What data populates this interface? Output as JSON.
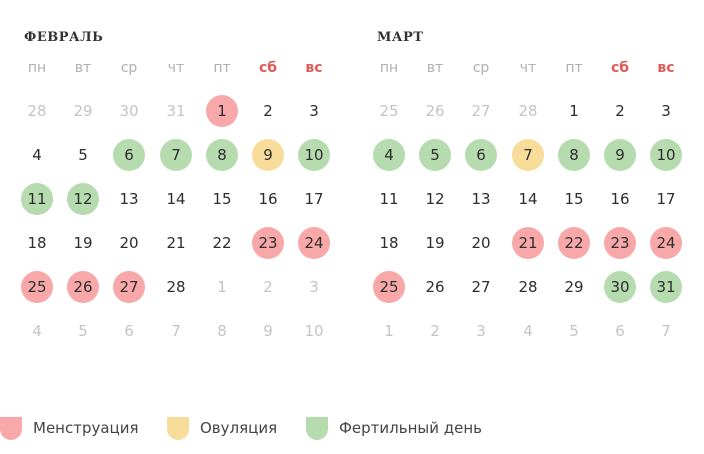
{
  "colors": {
    "menstruation": "#f8a8a8",
    "ovulation": "#f7dc9a",
    "fertile": "#b5dbaf",
    "weekend_header": "#e05a5a",
    "other_month_text": "#c4c4c4",
    "day_text": "#2d2d2d"
  },
  "weekdays": [
    "пн",
    "вт",
    "ср",
    "чт",
    "пт",
    "сб",
    "вс"
  ],
  "months": [
    {
      "title": "ФЕВРАЛЬ",
      "weeks": [
        [
          {
            "d": "28",
            "o": true
          },
          {
            "d": "29",
            "o": true
          },
          {
            "d": "30",
            "o": true
          },
          {
            "d": "31",
            "o": true
          },
          {
            "d": "1",
            "t": "menstruation"
          },
          {
            "d": "2"
          },
          {
            "d": "3"
          }
        ],
        [
          {
            "d": "4"
          },
          {
            "d": "5"
          },
          {
            "d": "6",
            "t": "fertile"
          },
          {
            "d": "7",
            "t": "fertile"
          },
          {
            "d": "8",
            "t": "fertile"
          },
          {
            "d": "9",
            "t": "ovulation"
          },
          {
            "d": "10",
            "t": "fertile"
          }
        ],
        [
          {
            "d": "11",
            "t": "fertile"
          },
          {
            "d": "12",
            "t": "fertile"
          },
          {
            "d": "13"
          },
          {
            "d": "14"
          },
          {
            "d": "15"
          },
          {
            "d": "16"
          },
          {
            "d": "17"
          }
        ],
        [
          {
            "d": "18"
          },
          {
            "d": "19"
          },
          {
            "d": "20"
          },
          {
            "d": "21"
          },
          {
            "d": "22"
          },
          {
            "d": "23",
            "t": "menstruation"
          },
          {
            "d": "24",
            "t": "menstruation"
          }
        ],
        [
          {
            "d": "25",
            "t": "menstruation"
          },
          {
            "d": "26",
            "t": "menstruation"
          },
          {
            "d": "27",
            "t": "menstruation"
          },
          {
            "d": "28"
          },
          {
            "d": "1",
            "o": true
          },
          {
            "d": "2",
            "o": true
          },
          {
            "d": "3",
            "o": true
          }
        ],
        [
          {
            "d": "4",
            "o": true
          },
          {
            "d": "5",
            "o": true
          },
          {
            "d": "6",
            "o": true
          },
          {
            "d": "7",
            "o": true
          },
          {
            "d": "8",
            "o": true
          },
          {
            "d": "9",
            "o": true
          },
          {
            "d": "10",
            "o": true
          }
        ]
      ]
    },
    {
      "title": "МАРТ",
      "weeks": [
        [
          {
            "d": "25",
            "o": true
          },
          {
            "d": "26",
            "o": true
          },
          {
            "d": "27",
            "o": true
          },
          {
            "d": "28",
            "o": true
          },
          {
            "d": "1"
          },
          {
            "d": "2"
          },
          {
            "d": "3"
          }
        ],
        [
          {
            "d": "4",
            "t": "fertile"
          },
          {
            "d": "5",
            "t": "fertile"
          },
          {
            "d": "6",
            "t": "fertile"
          },
          {
            "d": "7",
            "t": "ovulation"
          },
          {
            "d": "8",
            "t": "fertile"
          },
          {
            "d": "9",
            "t": "fertile"
          },
          {
            "d": "10",
            "t": "fertile"
          }
        ],
        [
          {
            "d": "11"
          },
          {
            "d": "12"
          },
          {
            "d": "13"
          },
          {
            "d": "14"
          },
          {
            "d": "15"
          },
          {
            "d": "16"
          },
          {
            "d": "17"
          }
        ],
        [
          {
            "d": "18"
          },
          {
            "d": "19"
          },
          {
            "d": "20"
          },
          {
            "d": "21",
            "t": "menstruation"
          },
          {
            "d": "22",
            "t": "menstruation"
          },
          {
            "d": "23",
            "t": "menstruation"
          },
          {
            "d": "24",
            "t": "menstruation"
          }
        ],
        [
          {
            "d": "25",
            "t": "menstruation"
          },
          {
            "d": "26"
          },
          {
            "d": "27"
          },
          {
            "d": "28"
          },
          {
            "d": "29"
          },
          {
            "d": "30",
            "t": "fertile"
          },
          {
            "d": "31",
            "t": "fertile"
          }
        ],
        [
          {
            "d": "1",
            "o": true
          },
          {
            "d": "2",
            "o": true
          },
          {
            "d": "3",
            "o": true
          },
          {
            "d": "4",
            "o": true
          },
          {
            "d": "5",
            "o": true
          },
          {
            "d": "6",
            "o": true
          },
          {
            "d": "7",
            "o": true
          }
        ]
      ]
    }
  ],
  "legend": [
    {
      "key": "menstruation",
      "label": "Менструация"
    },
    {
      "key": "ovulation",
      "label": "Овуляция"
    },
    {
      "key": "fertile",
      "label": "Фертильный день"
    }
  ]
}
